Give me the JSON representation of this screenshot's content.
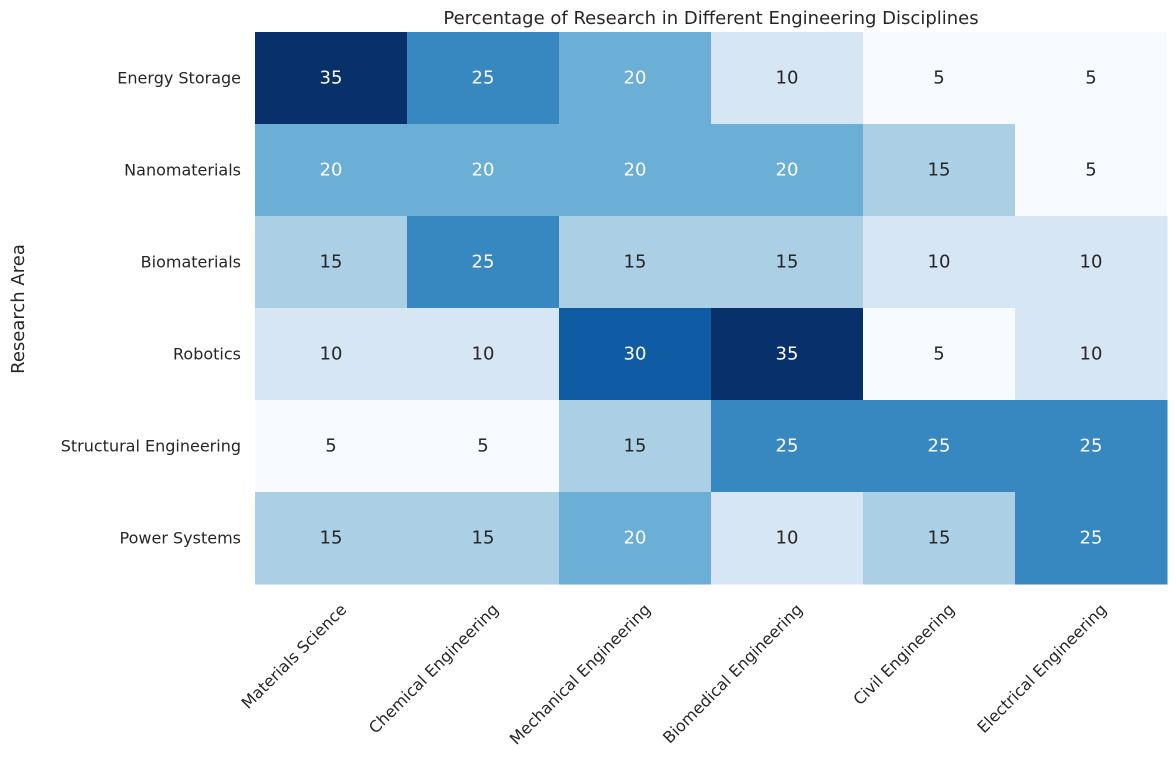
{
  "chart_data": {
    "type": "heatmap",
    "title": "Percentage of Research in Different Engineering Disciplines",
    "xlabel": "",
    "ylabel": "Research Area",
    "x_categories": [
      "Materials Science",
      "Chemical Engineering",
      "Mechanical Engineering",
      "Biomedical Engineering",
      "Civil Engineering",
      "Electrical Engineering"
    ],
    "y_categories": [
      "Energy Storage",
      "Nanomaterials",
      "Biomaterials",
      "Robotics",
      "Structural Engineering",
      "Power Systems"
    ],
    "values": [
      [
        35,
        25,
        20,
        10,
        5,
        5
      ],
      [
        20,
        20,
        20,
        20,
        15,
        5
      ],
      [
        15,
        25,
        15,
        15,
        10,
        10
      ],
      [
        10,
        10,
        30,
        35,
        5,
        10
      ],
      [
        5,
        5,
        15,
        25,
        25,
        25
      ],
      [
        15,
        15,
        20,
        10,
        15,
        25
      ]
    ],
    "value_range": [
      5,
      35
    ],
    "colormap": "Blues",
    "colorbar": false,
    "annotations": true,
    "grid": false
  }
}
